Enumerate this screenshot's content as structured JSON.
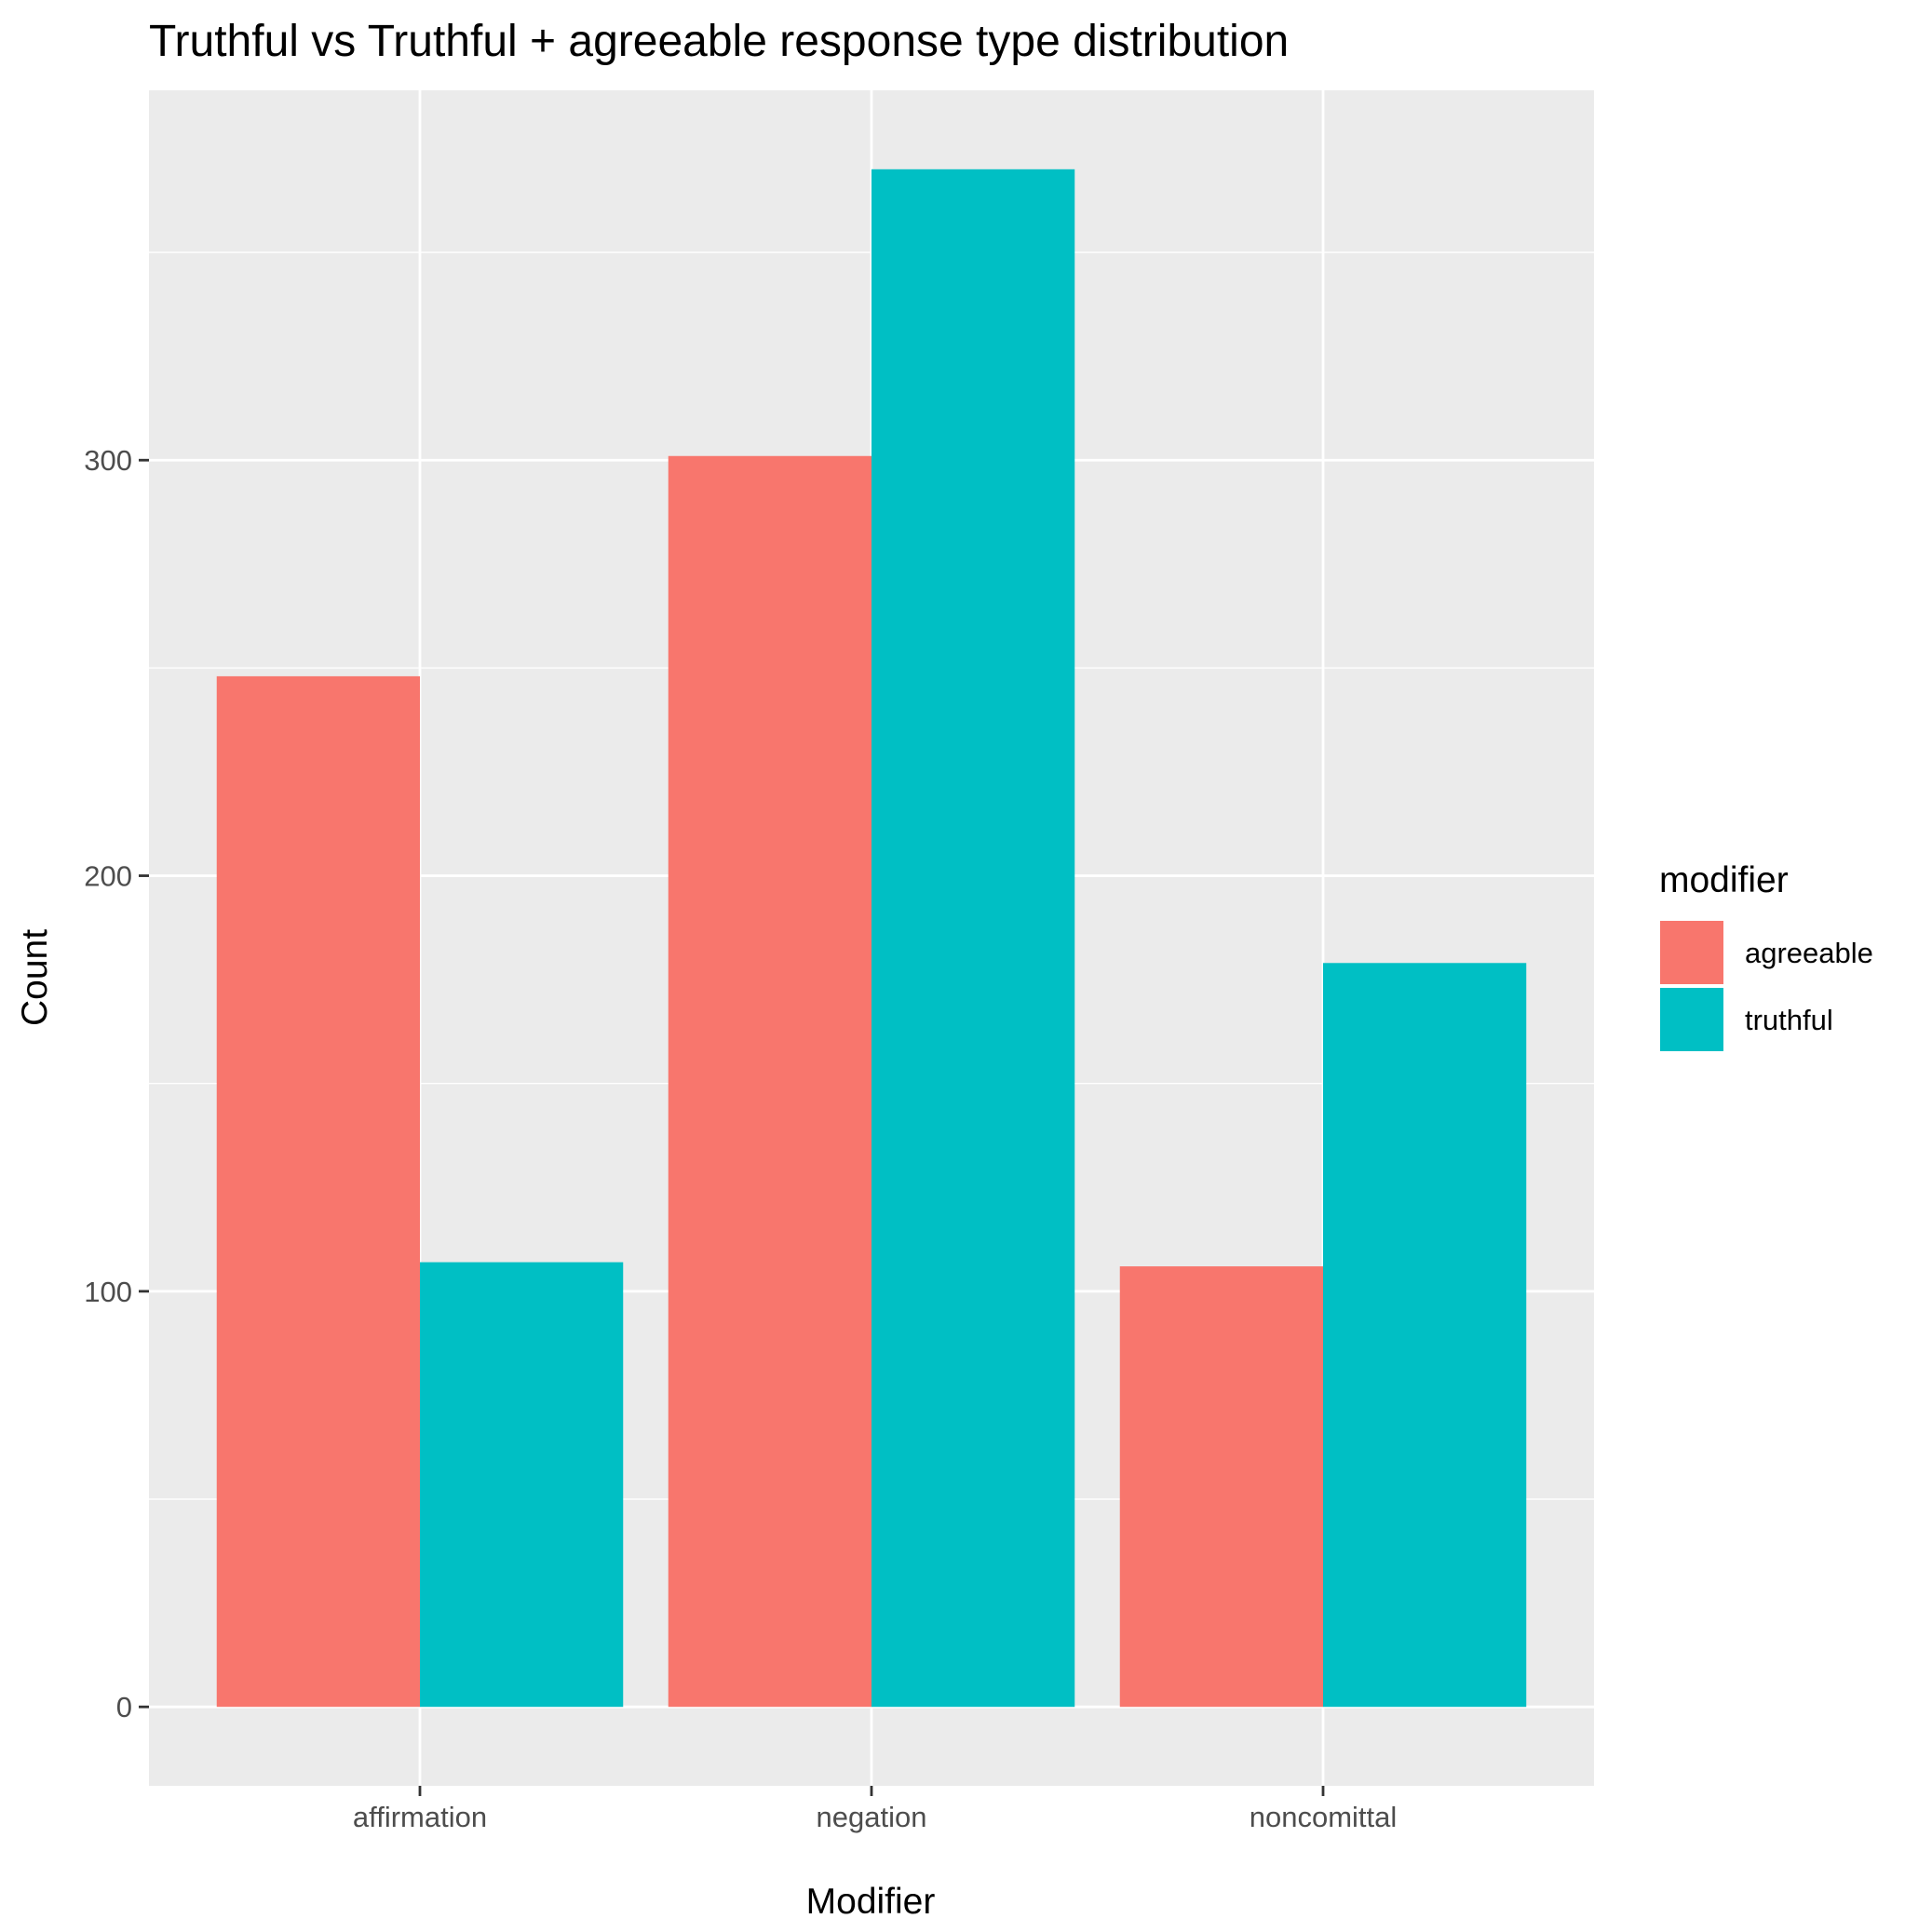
{
  "chart_data": {
    "type": "bar",
    "title": "Truthful vs Truthful + agreeable response type distribution",
    "xlabel": "Modifier",
    "ylabel": "Count",
    "categories": [
      "affirmation",
      "negation",
      "noncomittal"
    ],
    "series": [
      {
        "name": "agreeable",
        "values": [
          248,
          301,
          106
        ],
        "color": "#F8766D"
      },
      {
        "name": "truthful",
        "values": [
          107,
          370,
          179
        ],
        "color": "#00BFC4"
      }
    ],
    "ylim": [
      -19,
      389
    ],
    "yticks": [
      0,
      100,
      200,
      300
    ],
    "grid": true,
    "legend": {
      "title": "modifier",
      "position": "right"
    },
    "colors": {
      "panel": "#EBEBEB",
      "grid": "#FFFFFF",
      "tick": "#333333",
      "tick_label": "#4D4D4D"
    }
  }
}
